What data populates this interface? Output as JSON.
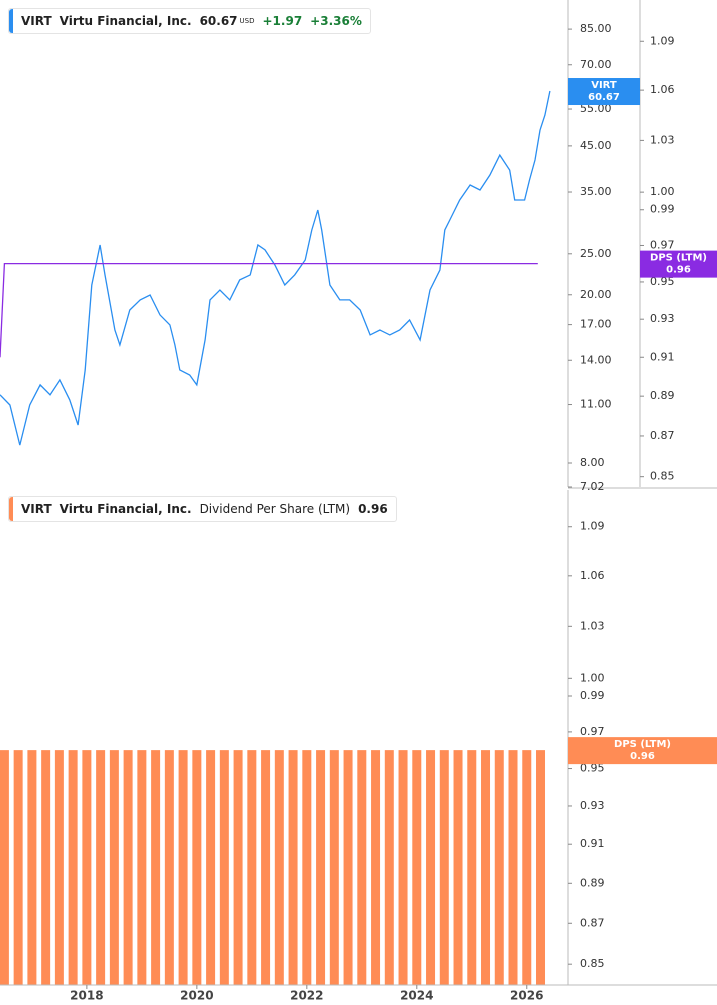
{
  "chart_data": [
    {
      "type": "line",
      "ticker": "VIRT",
      "company": "Virtu Financial, Inc.",
      "currency": "USD",
      "change": {
        "value": 1.97,
        "label": "+1.97"
      },
      "change_pct": {
        "value": 3.36,
        "label": "+3.36%"
      },
      "log_scale": true,
      "y2_log_scale": true,
      "xlim": [
        2016.42,
        2026.75
      ],
      "ylim": [
        7.02,
        99.6
      ],
      "yticks": [
        {
          "value": 85,
          "label": "85.00"
        },
        {
          "value": 70,
          "label": "70.00"
        },
        {
          "value": 55,
          "label": "55.00"
        },
        {
          "value": 45,
          "label": "45.00"
        },
        {
          "value": 35,
          "label": "35.00"
        },
        {
          "value": 25,
          "label": "25.00"
        },
        {
          "value": 20,
          "label": "20.00"
        },
        {
          "value": 17,
          "label": "17.00"
        },
        {
          "value": 14,
          "label": "14.00"
        },
        {
          "value": 11,
          "label": "11.00"
        },
        {
          "value": 8,
          "label": "8.00"
        },
        7.02
      ],
      "y2lim": [
        0.845,
        1.116
      ],
      "y2ticks": [
        1.09,
        1.06,
        1.03,
        {
          "value": 1,
          "label": "1.00"
        },
        0.99,
        0.97,
        0.95,
        0.93,
        0.91,
        0.89,
        0.87,
        0.85
      ],
      "series": [
        {
          "name": "VIRT",
          "color": "#2a8ef0",
          "x": [
            2016.42,
            2016.6,
            2016.78,
            2016.96,
            2017.15,
            2017.33,
            2017.51,
            2017.69,
            2017.84,
            2017.97,
            2018.09,
            2018.24,
            2018.33,
            2018.51,
            2018.6,
            2018.78,
            2018.97,
            2019.15,
            2019.33,
            2019.51,
            2019.6,
            2019.69,
            2019.87,
            2020.0,
            2020.15,
            2020.24,
            2020.42,
            2020.6,
            2020.78,
            2020.97,
            2021.11,
            2021.24,
            2021.42,
            2021.6,
            2021.78,
            2021.97,
            2022.09,
            2022.2,
            2022.27,
            2022.42,
            2022.6,
            2022.78,
            2022.97,
            2023.15,
            2023.33,
            2023.51,
            2023.69,
            2023.87,
            2024.06,
            2024.24,
            2024.42,
            2024.51,
            2024.6,
            2024.78,
            2024.97,
            2025.15,
            2025.33,
            2025.51,
            2025.69,
            2025.78,
            2025.96,
            2026.05,
            2026.15,
            2026.24,
            2026.33,
            2026.42
          ],
          "values": [
            11.6,
            10.97,
            8.82,
            10.97,
            12.24,
            11.6,
            12.58,
            11.28,
            9.84,
            13.28,
            21.09,
            26.22,
            22.28,
            16.51,
            15.22,
            18.41,
            19.45,
            19.98,
            17.92,
            16.97,
            15.22,
            13.28,
            12.92,
            12.24,
            15.64,
            19.45,
            20.53,
            19.45,
            21.69,
            22.28,
            26.22,
            25.53,
            23.52,
            21.09,
            22.28,
            24.17,
            28.46,
            31.74,
            28.46,
            21.09,
            19.45,
            19.45,
            18.41,
            16.07,
            16.51,
            16.07,
            16.51,
            17.43,
            15.64,
            20.53,
            22.89,
            28.46,
            30.05,
            33.51,
            36.36,
            35.39,
            38.39,
            42.8,
            39.44,
            33.51,
            33.51,
            37.37,
            41.67,
            49.04,
            53.2,
            60.67
          ]
        },
        {
          "name": "DPS (LTM)",
          "color": "#8a2be2",
          "axis": "y2",
          "x": [
            2016.42,
            2016.5,
            2026.2
          ],
          "values": [
            0.91,
            0.96,
            0.96
          ]
        }
      ]
    },
    {
      "type": "bar",
      "ticker": "VIRT",
      "company": "Virtu Financial, Inc.",
      "title": "Dividend Per Share (LTM)",
      "log_scale": true,
      "xlim": [
        2016.42,
        2026.75
      ],
      "xticks": [
        2018,
        2020,
        2022,
        2024,
        2026
      ],
      "ylim": [
        0.84,
        1.113
      ],
      "yticks": [
        1.09,
        1.06,
        1.03,
        {
          "value": 1,
          "label": "1.00"
        },
        0.99,
        0.97,
        0.95,
        0.93,
        0.91,
        0.89,
        0.87,
        0.85
      ],
      "series": [
        {
          "name": "DPS (LTM)",
          "color": "#ff8c55",
          "x": [
            2016.5,
            2016.75,
            2017,
            2017.25,
            2017.5,
            2017.75,
            2018,
            2018.25,
            2018.5,
            2018.75,
            2019,
            2019.25,
            2019.5,
            2019.75,
            2020,
            2020.25,
            2020.5,
            2020.75,
            2021,
            2021.25,
            2021.5,
            2021.75,
            2022,
            2022.25,
            2022.5,
            2022.75,
            2023,
            2023.25,
            2023.5,
            2023.75,
            2024,
            2024.25,
            2024.5,
            2024.75,
            2025,
            2025.25,
            2025.5,
            2025.75,
            2026,
            2026.25
          ],
          "values": [
            0.96,
            0.96,
            0.96,
            0.96,
            0.96,
            0.96,
            0.96,
            0.96,
            0.96,
            0.96,
            0.96,
            0.96,
            0.96,
            0.96,
            0.96,
            0.96,
            0.96,
            0.96,
            0.96,
            0.96,
            0.96,
            0.96,
            0.96,
            0.96,
            0.96,
            0.96,
            0.96,
            0.96,
            0.96,
            0.96,
            0.96,
            0.96,
            0.96,
            0.96,
            0.96,
            0.96,
            0.96,
            0.96,
            0.96,
            0.96
          ]
        }
      ]
    }
  ]
}
